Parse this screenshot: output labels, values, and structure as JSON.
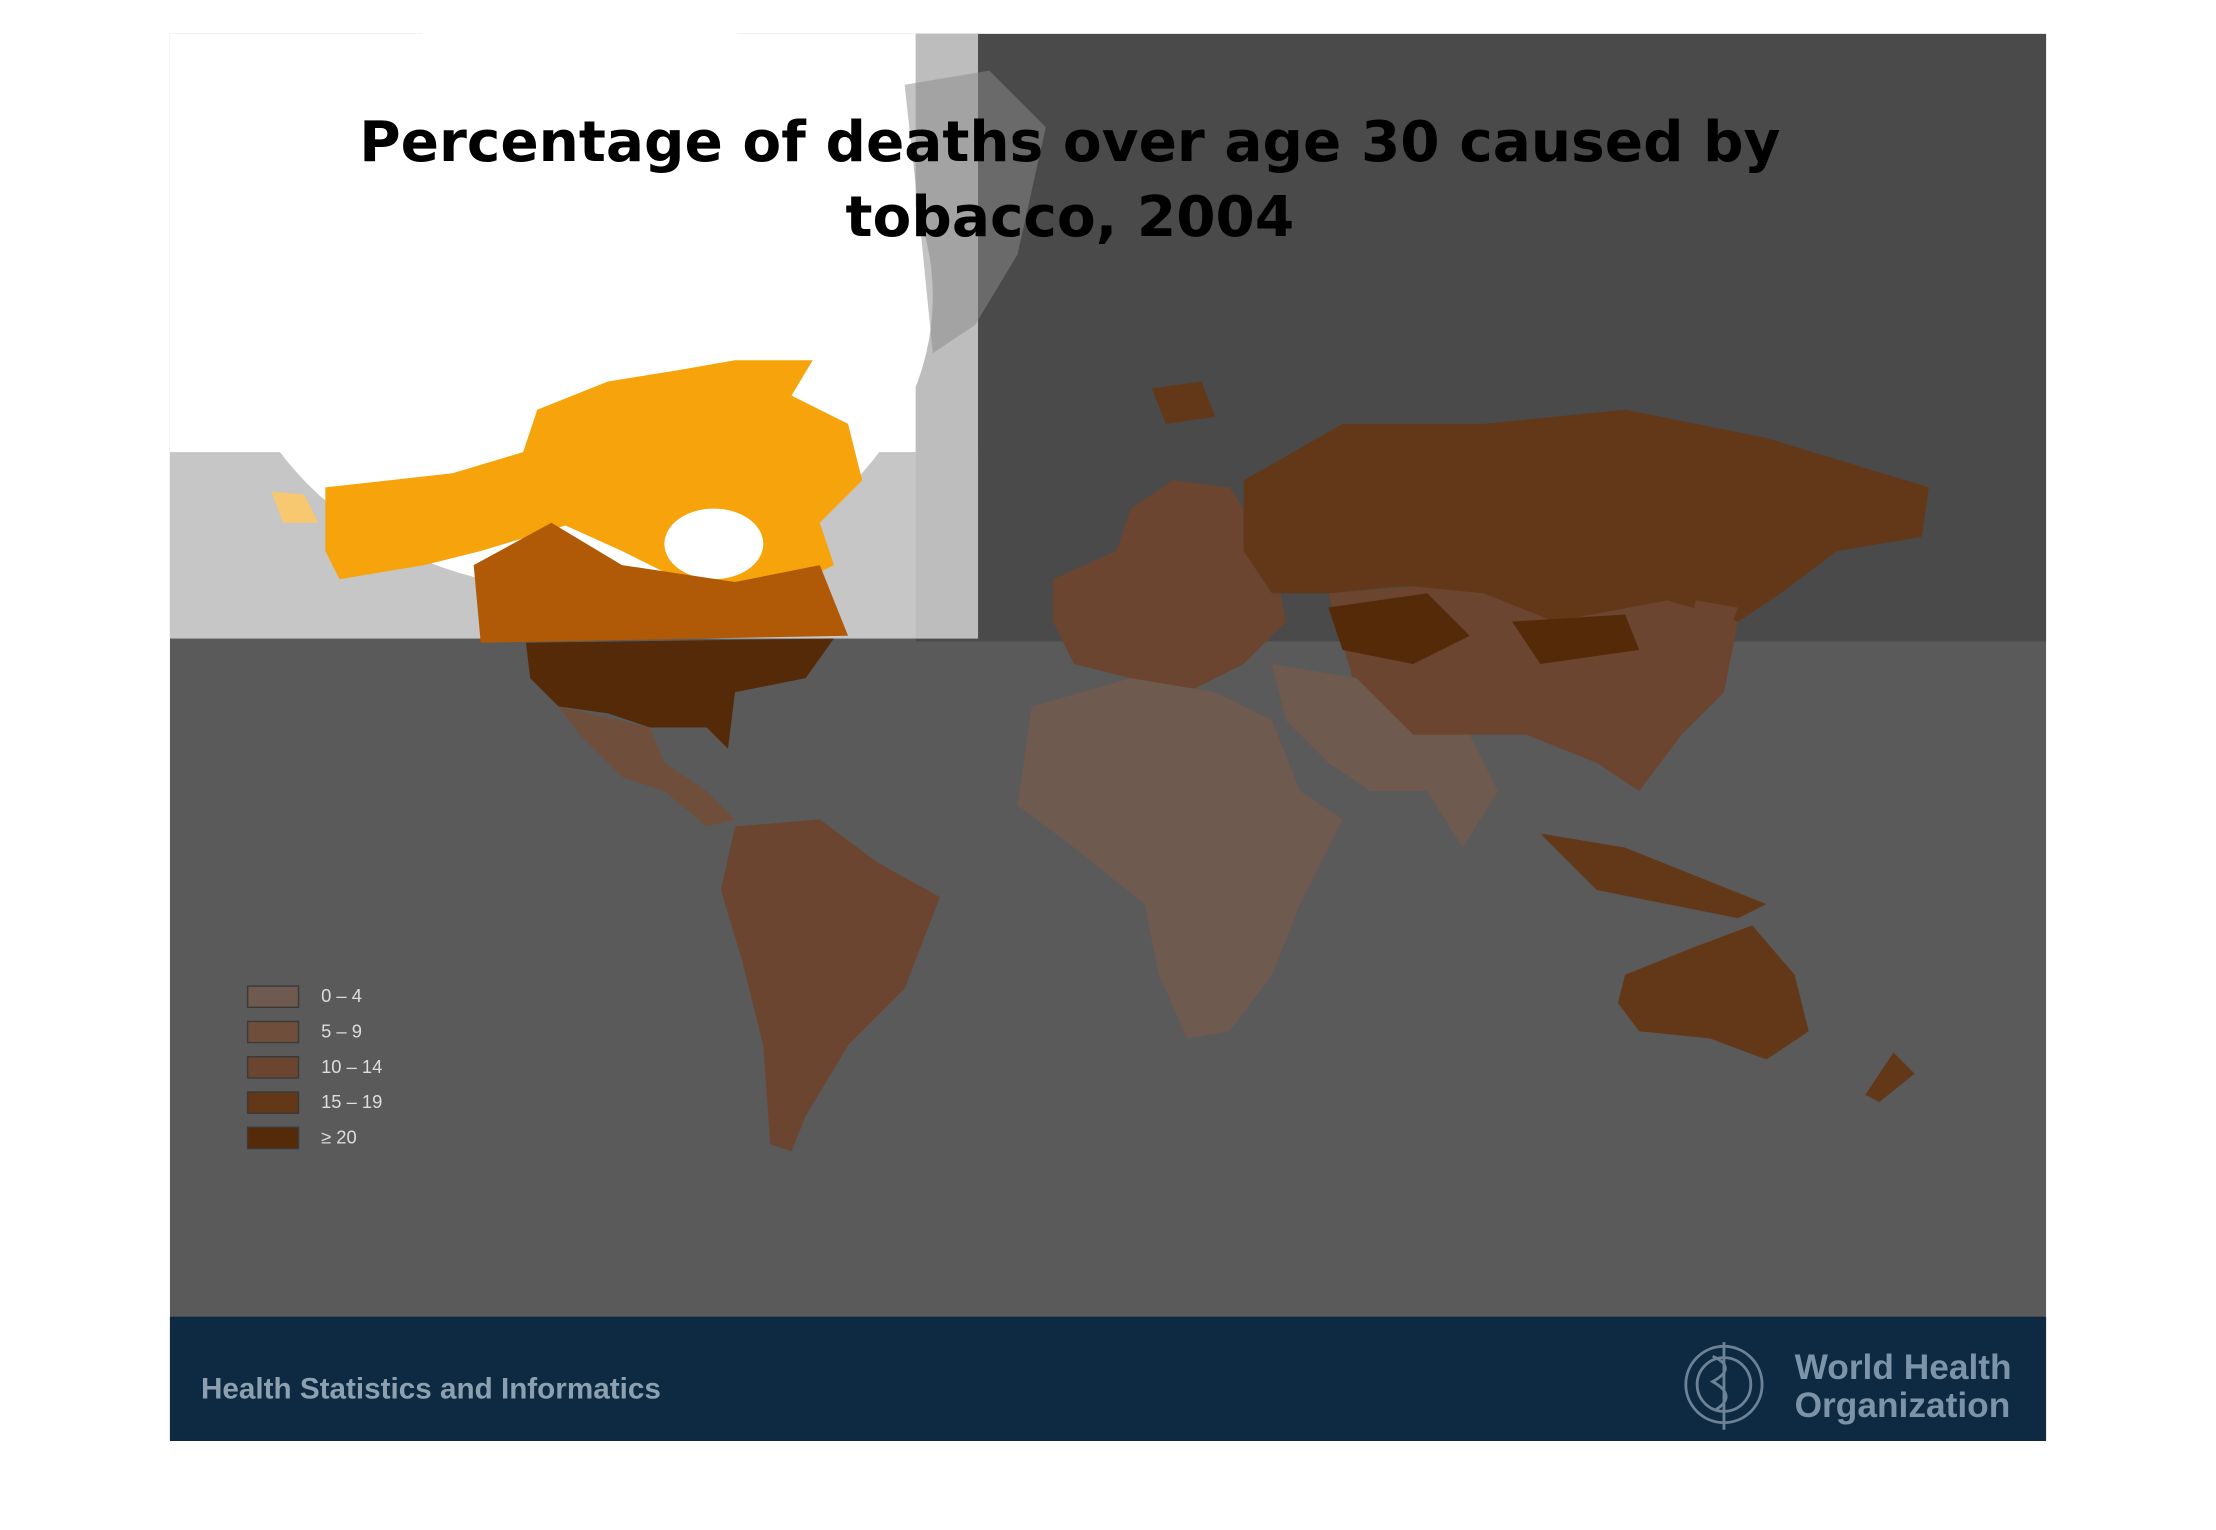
{
  "slide": {
    "title": [
      "Percentage of deaths over age 30 caused by",
      "tobacco, 2004"
    ],
    "legend": [
      {
        "label": "0 – 4",
        "color": "#6e5a4e"
      },
      {
        "label": "5 – 9",
        "color": "#6f4f3c"
      },
      {
        "label": "10 – 14",
        "color": "#6b4530"
      },
      {
        "label": "15 – 19",
        "color": "#623818"
      },
      {
        "label": "≥ 20",
        "color": "#552a08"
      }
    ],
    "footer": {
      "left": "Health Statistics and Informatics",
      "logo_lines": [
        "World Health",
        "Organization"
      ]
    }
  }
}
